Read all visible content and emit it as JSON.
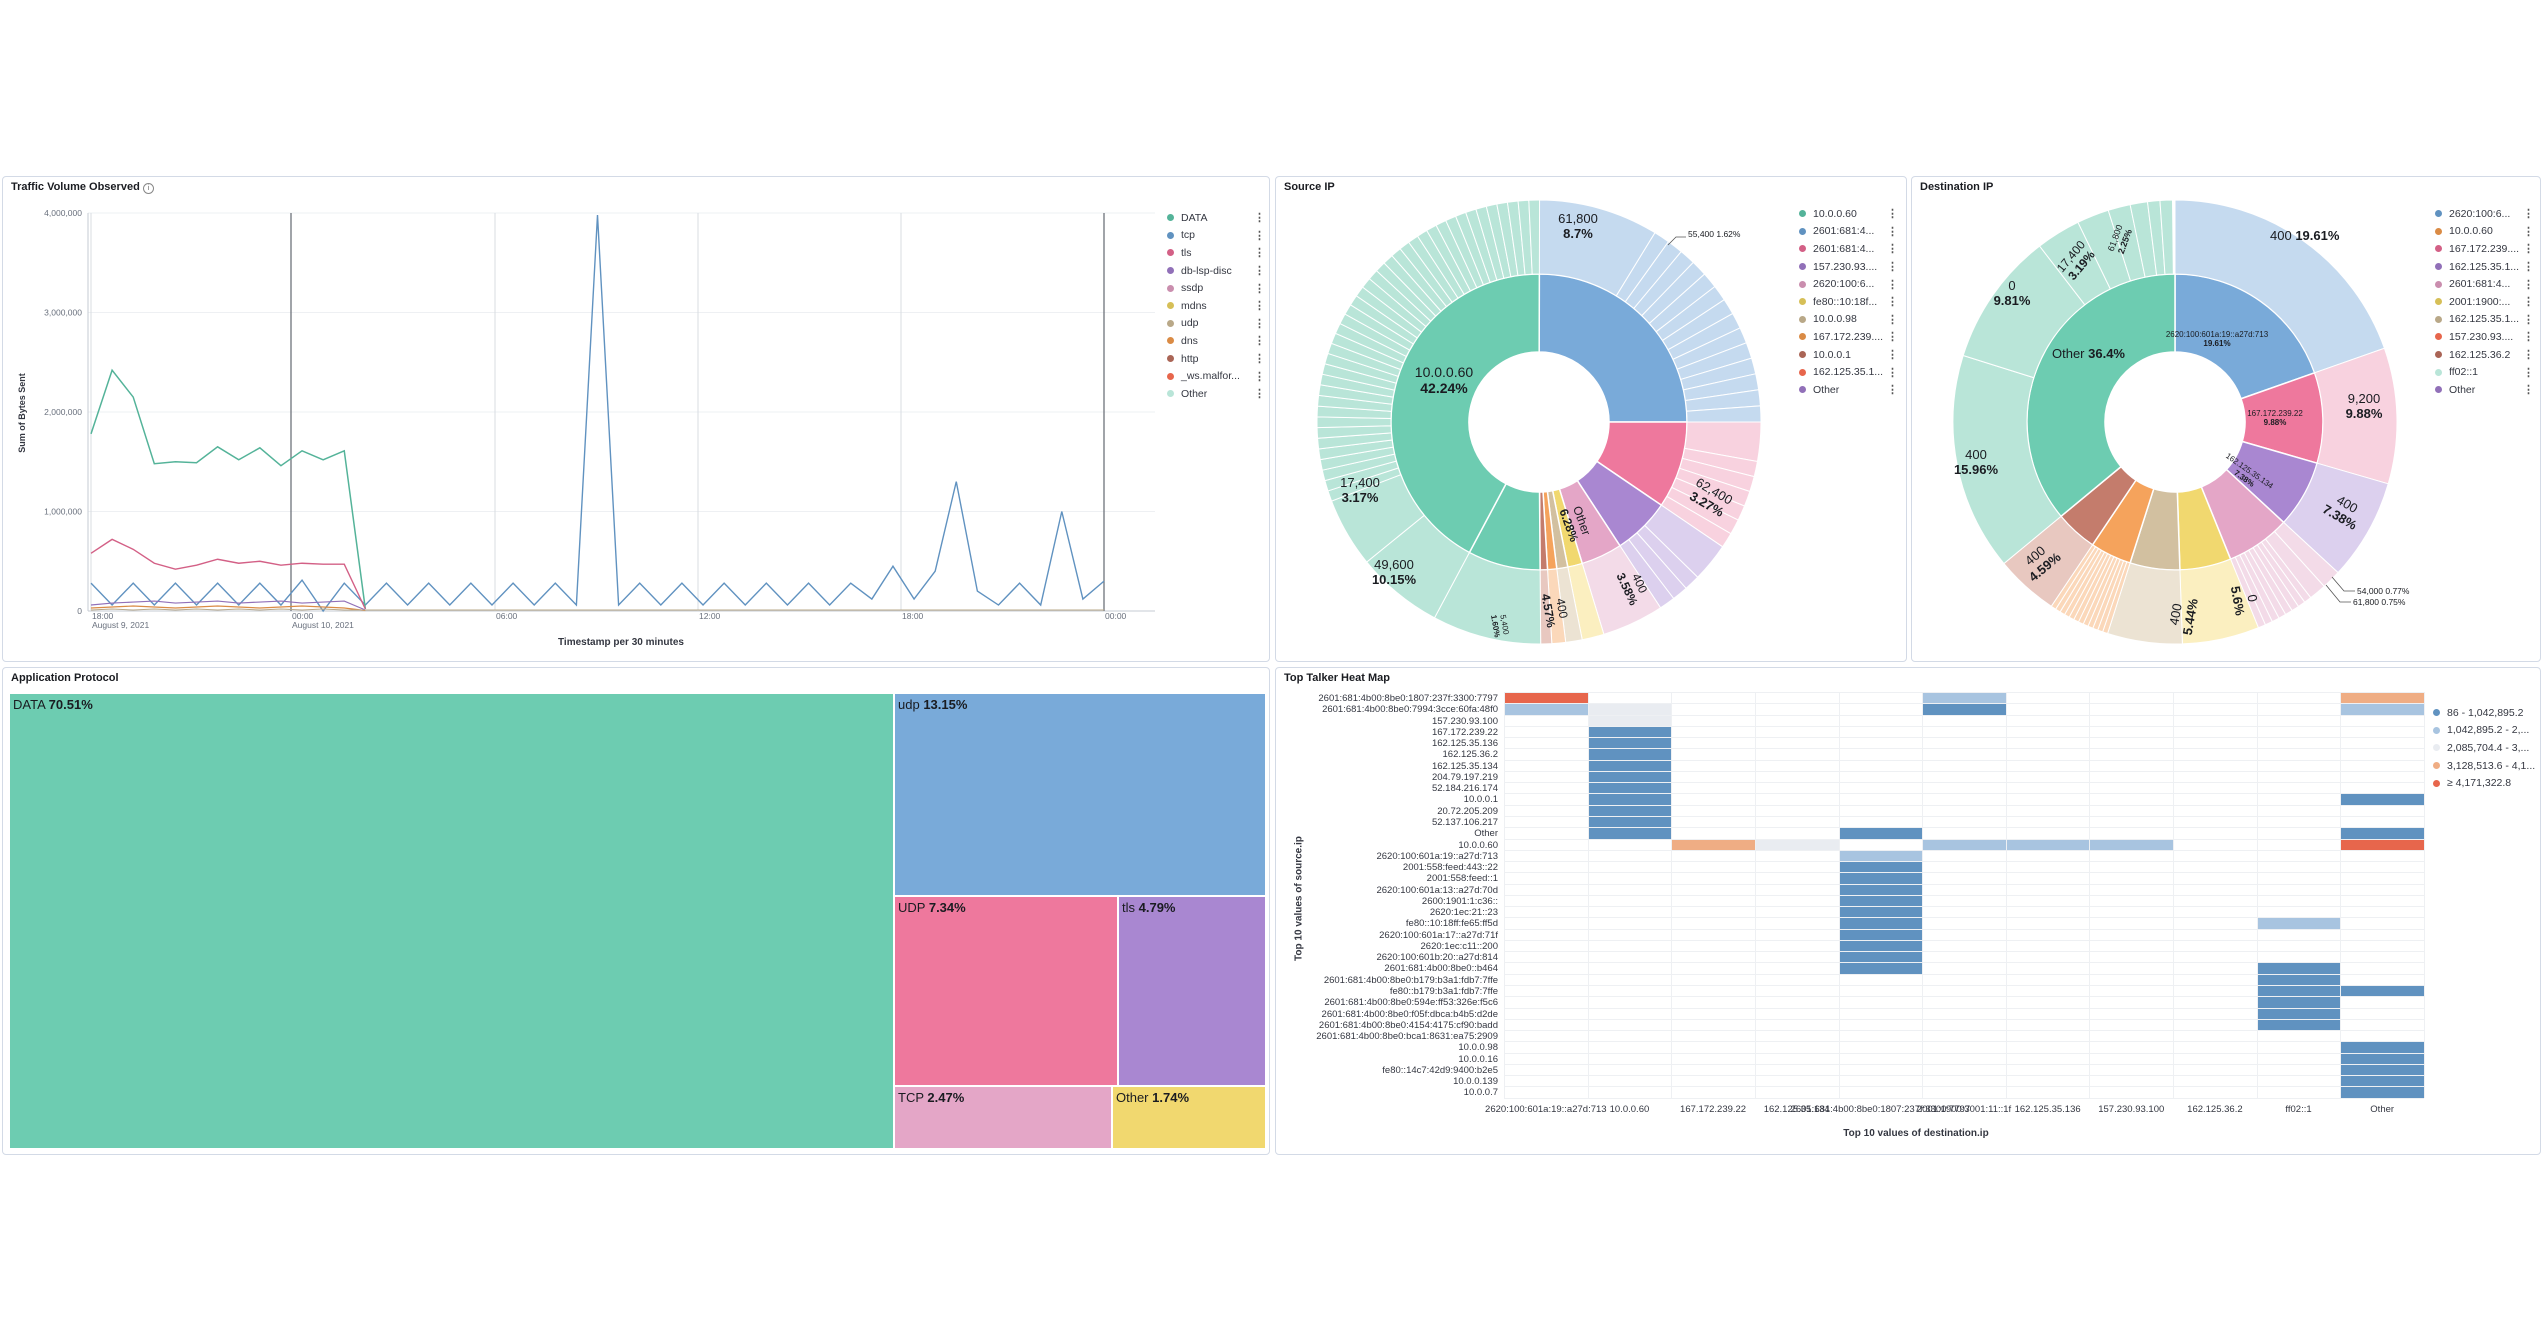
{
  "colors": {
    "teal": "#6dccb1",
    "blue": "#79aad9",
    "pink": "#ee789d",
    "purple": "#a987d1",
    "mauve": "#e4a6c7",
    "yellow": "#f1d86f",
    "tan": "#d2c0a0",
    "orange": "#f5a35c",
    "brown": "#c47c6c",
    "lteal": "#b9e5d8",
    "lblue": "#c5daef",
    "lpink": "#f8d2df"
  },
  "traffic": {
    "title": "Traffic Volume Observed",
    "info_icon": "info-icon",
    "ylabel": "Sum of Bytes Sent",
    "xlabel": "Timestamp per 30 minutes",
    "yticks": [
      "4,000,000",
      "3,000,000",
      "2,000,000",
      "1,000,000",
      "0"
    ],
    "xticks": [
      "18:00",
      "00:00",
      "06:00",
      "12:00",
      "18:00",
      "00:00"
    ],
    "xdates": [
      "August 9, 2021",
      "August 10, 2021"
    ],
    "legend": [
      "DATA",
      "tcp",
      "tls",
      "db-lsp-disc",
      "ssdp",
      "mdns",
      "udp",
      "dns",
      "http",
      "_ws.malfor...",
      "Other"
    ],
    "legend_colors": [
      "#54b399",
      "#6092c0",
      "#d36086",
      "#9170b8",
      "#ca8eae",
      "#d6bf57",
      "#b9a888",
      "#da8b45",
      "#aa6556",
      "#e7664c",
      "#b9e5d8"
    ]
  },
  "source_ip": {
    "title": "Source IP",
    "inner_labels": [
      {
        "name": "10.0.0.60",
        "pct": "42.24%"
      },
      {
        "name": "Other",
        "pct": "6.28%"
      }
    ],
    "outer_labels": [
      {
        "val": "61,800",
        "pct": "8.7%"
      },
      {
        "val": "55,400",
        "pct": "1.62%"
      },
      {
        "val": "62,400",
        "pct": "3.27%"
      },
      {
        "val": "400",
        "pct": "3.58%"
      },
      {
        "val": "400",
        "pct": "4.57%"
      },
      {
        "val": "5,400",
        "pct": "1.60%"
      },
      {
        "val": "49,600",
        "pct": "10.15%"
      },
      {
        "val": "17,400",
        "pct": "3.17%"
      }
    ],
    "legend": [
      "10.0.0.60",
      "2601:681:4...",
      "2601:681:4...",
      "157.230.93....",
      "2620:100:6...",
      "fe80::10:18f...",
      "10.0.0.98",
      "167.172.239....",
      "10.0.0.1",
      "162.125.35.1...",
      "Other"
    ],
    "legend_colors": [
      "#54b399",
      "#6092c0",
      "#d36086",
      "#9170b8",
      "#ca8eae",
      "#d6bf57",
      "#b9a888",
      "#da8b45",
      "#aa6556",
      "#e7664c",
      "#9170b8"
    ]
  },
  "dest_ip": {
    "title": "Destination IP",
    "inner_labels": [
      {
        "name": "2620:100:601a:19::a27d:713",
        "pct": "19.61%"
      },
      {
        "name": "167.172.239.22",
        "pct": "9.88%"
      },
      {
        "name": "162.125.35.134",
        "pct": "7.38%"
      },
      {
        "name": "Other",
        "pct": "36.4%"
      }
    ],
    "outer_labels": [
      {
        "val": "400",
        "pct": "19.61%"
      },
      {
        "val": "9,200",
        "pct": "9.88%"
      },
      {
        "val": "400",
        "pct": "7.38%"
      },
      {
        "val": "54,000",
        "pct": "0.77%"
      },
      {
        "val": "61,800",
        "pct": "0.75%"
      },
      {
        "val": "0",
        "pct": "5.6%"
      },
      {
        "val": "400",
        "pct": "5.44%"
      },
      {
        "val": "400",
        "pct": "4.59%"
      },
      {
        "val": "400",
        "pct": "15.96%"
      },
      {
        "val": "0",
        "pct": "9.81%"
      },
      {
        "val": "17,400",
        "pct": "3.19%"
      },
      {
        "val": "61,800",
        "pct": "2.25%"
      }
    ],
    "legend": [
      "2620:100:6...",
      "10.0.0.60",
      "167.172.239....",
      "162.125.35.1...",
      "2601:681:4...",
      "2001:1900:...",
      "162.125.35.1...",
      "157.230.93....",
      "162.125.36.2",
      "ff02::1",
      "Other"
    ],
    "legend_colors": [
      "#6092c0",
      "#da8b45",
      "#d36086",
      "#9170b8",
      "#ca8eae",
      "#d6bf57",
      "#b9a888",
      "#e7664c",
      "#aa6556",
      "#b9e5d8",
      "#9170b8"
    ]
  },
  "app_protocol": {
    "title": "Application Protocol",
    "cells": [
      {
        "name": "DATA",
        "pct": "70.51%"
      },
      {
        "name": "udp",
        "pct": "13.15%"
      },
      {
        "name": "UDP",
        "pct": "7.34%"
      },
      {
        "name": "tls",
        "pct": "4.79%"
      },
      {
        "name": "TCP",
        "pct": "2.47%"
      },
      {
        "name": "Other",
        "pct": "1.74%"
      }
    ]
  },
  "heatmap": {
    "title": "Top Talker Heat Map",
    "ylabel": "Top 10 values of source.ip",
    "xlabel": "Top 10 values of destination.ip",
    "rows": [
      "2601:681:4b00:8be0:1807:237f:3300:7797",
      "2601:681:4b00:8be0:7994:3cce:60fa:48f0",
      "157.230.93.100",
      "167.172.239.22",
      "162.125.35.136",
      "162.125.36.2",
      "162.125.35.134",
      "204.79.197.219",
      "52.184.216.174",
      "10.0.0.1",
      "20.72.205.209",
      "52.137.106.217",
      "Other",
      "10.0.0.60",
      "2620:100:601a:19::a27d:713",
      "2001:558:feed:443::22",
      "2001:558:feed::1",
      "2620:100:601a:13::a27d:70d",
      "2600:1901:1:c36::",
      "2620:1ec:21::23",
      "fe80::10:18ff:fe65:ff5d",
      "2620:100:601a:17::a27d:71f",
      "2620:1ec:c11::200",
      "2620:100:601b:20::a27d:814",
      "2601:681:4b00:8be0::b464",
      "2601:681:4b00:8be0:b179:b3a1:fdb7:7ffe",
      "fe80::b179:b3a1:fdb7:7ffe",
      "2601:681:4b00:8be0:594e:ff53:326e:f5c6",
      "2601:681:4b00:8be0:f05f:dbca:b4b5:d2de",
      "2601:681:4b00:8be0:4154:4175:cf90:badd",
      "2601:681:4b00:8be0:bca1:8631:ea75:2909",
      "10.0.0.98",
      "10.0.0.16",
      "fe80::14c7:42d9:9400:b2e5",
      "10.0.0.139",
      "10.0.0.7"
    ],
    "cols": [
      "2620:100:601a:19::a27d:713",
      "10.0.0.60",
      "167.172.239.22",
      "162.125.35.134",
      "2601:681:4b00:8be0:1807:237f:3300:7797",
      "2001:1900:3001:11::1f",
      "162.125.35.136",
      "157.230.93.100",
      "162.125.36.2",
      "ff02::1",
      "Other"
    ],
    "col_labels": [
      "2620:100:601a:19::a27d:713",
      "10.0.0.60",
      "167.172.239.22",
      "162.125.35.134",
      "2601:681:4b00:8be0:1807:237f:3300:7797",
      "2001:1900:3001:11::1f",
      "162.125.35.136",
      "157.230.93.100",
      "162.125.36.2",
      "ff02::1",
      "Other"
    ],
    "legend": [
      "86 - 1,042,895.2",
      "1,042,895.2 - 2,...",
      "2,085,704.4 - 3,...",
      "3,128,513.6 - 4,1...",
      "≥ 4,171,322.8"
    ],
    "legend_colors": [
      "#6092c0",
      "#a8c4e0",
      "#e9ecf1",
      "#efad84",
      "#e7664c"
    ]
  }
}
